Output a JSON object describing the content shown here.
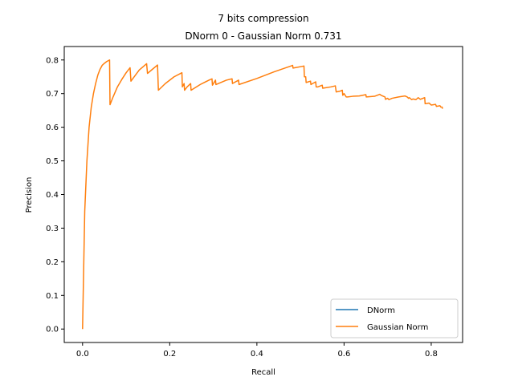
{
  "chart_data": {
    "type": "line",
    "title_line1": "7 bits compression",
    "title_line2": "DNorm 0 - Gaussian Norm 0.731",
    "xlabel": "Recall",
    "ylabel": "Precision",
    "xlim": [
      -0.042,
      0.872
    ],
    "ylim": [
      -0.04,
      0.84
    ],
    "xticks": [
      0.0,
      0.2,
      0.4,
      0.6,
      0.8
    ],
    "xtick_labels": [
      "0.0",
      "0.2",
      "0.4",
      "0.6",
      "0.8"
    ],
    "yticks": [
      0.0,
      0.1,
      0.2,
      0.3,
      0.4,
      0.5,
      0.6,
      0.7,
      0.8
    ],
    "ytick_labels": [
      "0.0",
      "0.1",
      "0.2",
      "0.3",
      "0.4",
      "0.5",
      "0.6",
      "0.7",
      "0.8"
    ],
    "legend_position": "lower-right",
    "series": [
      {
        "name": "DNorm",
        "color": "#1f77b4",
        "x": [],
        "y": []
      },
      {
        "name": "Gaussian Norm",
        "color": "#ff7f0e",
        "x": [
          0.0,
          0.005,
          0.01,
          0.015,
          0.02,
          0.025,
          0.03,
          0.035,
          0.04,
          0.045,
          0.05,
          0.055,
          0.062,
          0.063,
          0.07,
          0.08,
          0.09,
          0.1,
          0.109,
          0.111,
          0.13,
          0.147,
          0.149,
          0.16,
          0.172,
          0.174,
          0.19,
          0.21,
          0.228,
          0.229,
          0.233,
          0.234,
          0.24,
          0.248,
          0.249,
          0.27,
          0.29,
          0.297,
          0.298,
          0.305,
          0.306,
          0.33,
          0.343,
          0.344,
          0.358,
          0.359,
          0.4,
          0.44,
          0.48,
          0.482,
          0.483,
          0.508,
          0.509,
          0.512,
          0.513,
          0.523,
          0.524,
          0.535,
          0.536,
          0.54,
          0.55,
          0.551,
          0.57,
          0.58,
          0.582,
          0.59,
          0.596,
          0.597,
          0.6,
          0.605,
          0.608,
          0.62,
          0.635,
          0.65,
          0.651,
          0.67,
          0.682,
          0.685,
          0.694,
          0.695,
          0.7,
          0.703,
          0.71,
          0.725,
          0.74,
          0.745,
          0.748,
          0.75,
          0.755,
          0.758,
          0.765,
          0.77,
          0.775,
          0.785,
          0.786,
          0.795,
          0.8,
          0.81,
          0.812,
          0.82,
          0.822,
          0.825,
          0.826
        ],
        "y": [
          0.0,
          0.35,
          0.5,
          0.6,
          0.66,
          0.7,
          0.73,
          0.755,
          0.772,
          0.784,
          0.79,
          0.795,
          0.8,
          0.667,
          0.69,
          0.72,
          0.742,
          0.762,
          0.777,
          0.737,
          0.77,
          0.789,
          0.76,
          0.772,
          0.785,
          0.71,
          0.73,
          0.75,
          0.762,
          0.72,
          0.73,
          0.71,
          0.72,
          0.73,
          0.71,
          0.727,
          0.74,
          0.744,
          0.725,
          0.74,
          0.727,
          0.74,
          0.744,
          0.73,
          0.74,
          0.727,
          0.745,
          0.765,
          0.783,
          0.784,
          0.776,
          0.782,
          0.75,
          0.75,
          0.733,
          0.737,
          0.727,
          0.735,
          0.72,
          0.72,
          0.725,
          0.716,
          0.72,
          0.723,
          0.705,
          0.707,
          0.71,
          0.695,
          0.7,
          0.69,
          0.69,
          0.692,
          0.693,
          0.697,
          0.69,
          0.692,
          0.698,
          0.695,
          0.69,
          0.683,
          0.686,
          0.682,
          0.686,
          0.69,
          0.693,
          0.69,
          0.686,
          0.688,
          0.682,
          0.684,
          0.682,
          0.688,
          0.683,
          0.688,
          0.67,
          0.672,
          0.666,
          0.668,
          0.662,
          0.664,
          0.66,
          0.66,
          0.655
        ]
      }
    ]
  }
}
